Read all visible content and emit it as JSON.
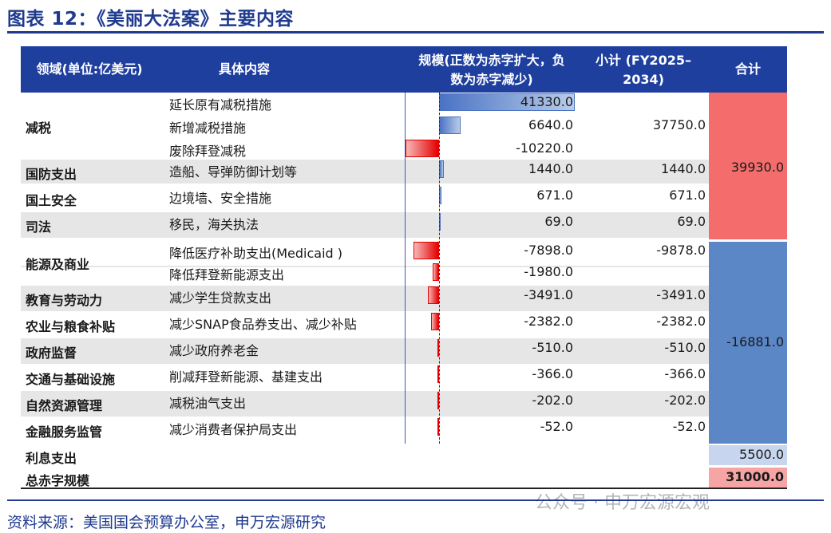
{
  "title": "图表 12：《美丽大法案》主要内容",
  "header": {
    "col1": "领域(单位:亿美元)",
    "col2": "具体内容",
    "col3_line1": "规模(正数为赤字扩大，负",
    "col3_line2": "数为赤字减少)",
    "col4_line1": "小计 (FY2025–",
    "col4_line2": "2034)",
    "col5": "合计"
  },
  "chart_data": {
    "type": "table",
    "rows": [
      {
        "category": "减税",
        "item": "延长原有减税措施",
        "value": 41330.0,
        "value_label": "41330.0",
        "subtotal": ""
      },
      {
        "category": "",
        "item": "新增减税措施",
        "value": 6640.0,
        "value_label": "6640.0",
        "subtotal": "37750.0"
      },
      {
        "category": "",
        "item": "废除拜登减税",
        "value": -10220.0,
        "value_label": "-10220.0",
        "subtotal": ""
      },
      {
        "category": "国防支出",
        "item": "造船、导弹防御计划等",
        "value": 1440.0,
        "value_label": "1440.0",
        "subtotal": "1440.0"
      },
      {
        "category": "国土安全",
        "item": "边境墙、安全措施",
        "value": 671.0,
        "value_label": "671.0",
        "subtotal": "671.0"
      },
      {
        "category": "司法",
        "item": "移民，海关执法",
        "value": 69.0,
        "value_label": "69.0",
        "subtotal": "69.0"
      },
      {
        "category": "能源及商业",
        "item": "降低医疗补助支出(Medicaid )",
        "value": -7898.0,
        "value_label": "-7898.0",
        "subtotal": "-9878.0"
      },
      {
        "category": "",
        "item": "降低拜登新能源支出",
        "value": -1980.0,
        "value_label": "-1980.0",
        "subtotal": ""
      },
      {
        "category": "教育与劳动力",
        "item": "减少学生贷款支出",
        "value": -3491.0,
        "value_label": "-3491.0",
        "subtotal": "-3491.0"
      },
      {
        "category": "农业与粮食补贴",
        "item": "减少SNAP食品券支出、减少补贴",
        "value": -2382.0,
        "value_label": "-2382.0",
        "subtotal": "-2382.0"
      },
      {
        "category": "政府监督",
        "item": "减少政府养老金",
        "value": -510.0,
        "value_label": "-510.0",
        "subtotal": "-510.0"
      },
      {
        "category": "交通与基础设施",
        "item": "削减拜登新能源、基建支出",
        "value": -366.0,
        "value_label": "-366.0",
        "subtotal": "-366.0"
      },
      {
        "category": "自然资源管理",
        "item": "减税油气支出",
        "value": -202.0,
        "value_label": "-202.0",
        "subtotal": "-202.0"
      },
      {
        "category": "金融服务监管",
        "item": "减少消费者保护局支出",
        "value": -52.0,
        "value_label": "-52.0",
        "subtotal": "-52.0"
      }
    ],
    "totals": {
      "increase_group": "39930.0",
      "decrease_group": "-16881.0"
    },
    "interest": {
      "label": "利息支出",
      "value": "5500.0"
    },
    "deficit": {
      "label": "总赤字规模",
      "value": "31000.0"
    },
    "colors": {
      "positive": "#4a73c4",
      "negative": "#e40000",
      "header": "#1f3f9f"
    }
  },
  "source": "资料来源：美国国会预算办公室，申万宏源研究",
  "watermark": "公众号 · 申万宏源宏观"
}
